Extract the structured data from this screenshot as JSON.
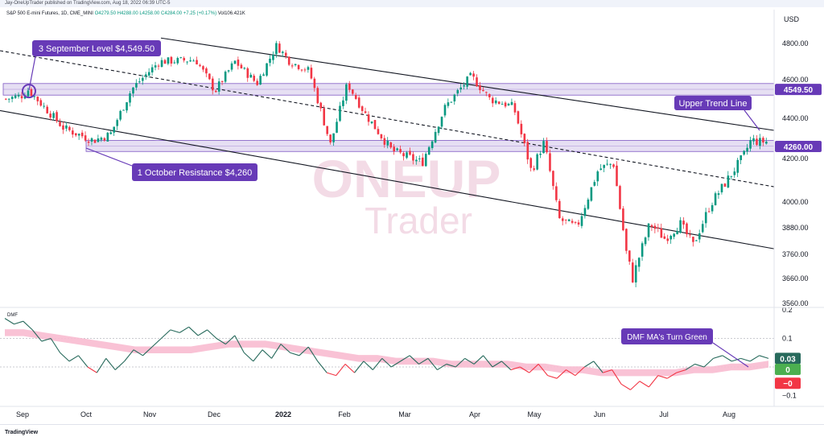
{
  "header": {
    "publisher": "Jay-OneUpTrader published on TradingView.com, Aug 18, 2022 06:39 UTC-5"
  },
  "legend": {
    "symbol": "S&P 500 E-mini Futures, 1D, CME_MINI",
    "ohlc": "O4279.50 H4288.00 L4258.00 C4284.00 +7.25 (+0.17%)",
    "volume": "Vol106.421K"
  },
  "footer": {
    "brand": "TradingView"
  },
  "watermark": {
    "line1": "ONEUP",
    "line2": "Trader"
  },
  "colors": {
    "up": "#089981",
    "down": "#f23645",
    "zone_fill": "#d1c4e9",
    "zone_stroke": "#7e57c2",
    "callout": "#673ab7",
    "dmf_green": "#26695b",
    "dmf_red": "#f23645",
    "ma_pink": "#f8bbd0"
  },
  "chart_data": [
    {
      "type": "candlestick",
      "title": "",
      "currency_label": "USD",
      "x_ticks": [
        "Sep",
        "Oct",
        "Nov",
        "Dec",
        "2022",
        "Feb",
        "Mar",
        "Apr",
        "May",
        "Jun",
        "Jul",
        "Aug"
      ],
      "y_ticks": [
        4800,
        4600,
        4400,
        4200,
        4000,
        3880,
        3760,
        3660,
        3560
      ],
      "y_tick_labels": [
        "4800.00",
        "4600.00",
        "4400.00",
        "4200.00",
        "4000.00",
        "3880.00",
        "3760.00",
        "3660.00",
        "3560.00"
      ],
      "ylim": [
        3530,
        4900
      ],
      "grid": false,
      "price_scale_badges": [
        {
          "label": "4549.50",
          "value": 4549.5
        },
        {
          "label": "4260.00",
          "value": 4260
        }
      ],
      "zones": [
        {
          "name": "3 September Level $4,549.50",
          "low": 4520,
          "high": 4580
        },
        {
          "name": "1 October Resistance $4,260",
          "low": 4235,
          "high": 4290
        }
      ],
      "annotations": [
        {
          "text": "3 September Level $4,549.50"
        },
        {
          "text": "1 October Resistance $4,260"
        },
        {
          "text": "Upper Trend Line"
        }
      ],
      "trend_lines": [
        {
          "name": "upper",
          "from": [
            "Jan 2022 start",
            4830
          ],
          "to": [
            "Aug end",
            4340
          ]
        },
        {
          "name": "middle",
          "style": "dashed",
          "from": [
            "Aug 2021 end",
            4760
          ],
          "to": [
            "Aug end",
            4070
          ]
        },
        {
          "name": "lower",
          "from": [
            "Aug 2021 end",
            4440
          ],
          "to": [
            "Aug end",
            3785
          ]
        }
      ],
      "closes_path": [
        {
          "x": "Sep 1",
          "close": 4520
        },
        {
          "x": "Sep 3",
          "close": 4549.5
        },
        {
          "x": "Sep 20",
          "close": 4350
        },
        {
          "x": "Oct 4",
          "close": 4290
        },
        {
          "x": "Oct 12",
          "close": 4320
        },
        {
          "x": "Oct 22",
          "close": 4550
        },
        {
          "x": "Nov 5",
          "close": 4700
        },
        {
          "x": "Nov 22",
          "close": 4710
        },
        {
          "x": "Dec 1",
          "close": 4540
        },
        {
          "x": "Dec 10",
          "close": 4700
        },
        {
          "x": "Dec 20",
          "close": 4580
        },
        {
          "x": "Dec 29",
          "close": 4790
        },
        {
          "x": "Jan 5",
          "close": 4700
        },
        {
          "x": "Jan 14",
          "close": 4650
        },
        {
          "x": "Jan 24",
          "close": 4270
        },
        {
          "x": "Feb 2",
          "close": 4580
        },
        {
          "x": "Feb 11",
          "close": 4420
        },
        {
          "x": "Feb 24",
          "close": 4240
        },
        {
          "x": "Mar 8",
          "close": 4180
        },
        {
          "x": "Mar 18",
          "close": 4460
        },
        {
          "x": "Mar 29",
          "close": 4620
        },
        {
          "x": "Apr 8",
          "close": 4500
        },
        {
          "x": "Apr 20",
          "close": 4460
        },
        {
          "x": "Apr 29",
          "close": 4140
        },
        {
          "x": "May 5",
          "close": 4280
        },
        {
          "x": "May 12",
          "close": 3920
        },
        {
          "x": "May 20",
          "close": 3880
        },
        {
          "x": "May 30",
          "close": 4150
        },
        {
          "x": "Jun 7",
          "close": 4180
        },
        {
          "x": "Jun 13",
          "close": 3770
        },
        {
          "x": "Jun 16",
          "close": 3660
        },
        {
          "x": "Jun 24",
          "close": 3900
        },
        {
          "x": "Jul 1",
          "close": 3830
        },
        {
          "x": "Jul 8",
          "close": 3900
        },
        {
          "x": "Jul 14",
          "close": 3800
        },
        {
          "x": "Jul 22",
          "close": 3990
        },
        {
          "x": "Aug 1",
          "close": 4120
        },
        {
          "x": "Aug 10",
          "close": 4210
        },
        {
          "x": "Aug 16",
          "close": 4300
        },
        {
          "x": "Aug 18",
          "close": 4284
        }
      ]
    },
    {
      "type": "line",
      "title": "DMF",
      "y_ticks": [
        0.2,
        0.1,
        0,
        -0.1
      ],
      "y_tick_labels": [
        "0.2",
        "0.1",
        "0",
        "−0.1"
      ],
      "ylim": [
        -0.13,
        0.2
      ],
      "value_badges": [
        {
          "label": "0.03",
          "value": 0.03,
          "color": "#26695b"
        },
        {
          "label": "0",
          "value": 0.0,
          "color": "#4caf50"
        },
        {
          "label": "−0",
          "value": -0.04,
          "color": "#f23645"
        }
      ],
      "annotations": [
        {
          "text": "DMF MA's Turn Green"
        }
      ],
      "series": [
        {
          "name": "",
          "style": "line-green-above-red-below",
          "values": [
            0.17,
            0.15,
            0.16,
            0.13,
            0.09,
            0.1,
            0.05,
            0.02,
            0.04,
            0.0,
            -0.02,
            0.03,
            -0.01,
            0.02,
            0.06,
            0.04,
            0.07,
            0.1,
            0.13,
            0.12,
            0.14,
            0.11,
            0.13,
            0.1,
            0.08,
            0.11,
            0.05,
            0.02,
            0.06,
            0.03,
            0.08,
            0.05,
            0.04,
            0.07,
            0.02,
            -0.02,
            -0.03,
            0.01,
            -0.02,
            0.02,
            -0.01,
            0.03,
            0.0,
            0.02,
            0.04,
            0.01,
            0.03,
            -0.01,
            0.01,
            0.0,
            0.03,
            0.01,
            0.04,
            0.0,
            0.02,
            -0.01,
            0.0,
            -0.02,
            0.01,
            -0.03,
            -0.04,
            -0.01,
            -0.03,
            0.0,
            0.02,
            -0.02,
            -0.01,
            -0.06,
            -0.08,
            -0.05,
            -0.07,
            -0.03,
            -0.04,
            -0.02,
            -0.01,
            0.01,
            0.0,
            0.03,
            0.04,
            0.02,
            0.03,
            0.02,
            0.04,
            0.03
          ]
        },
        {
          "name": "",
          "style": "ma-band",
          "values": [
            0.12,
            0.12,
            0.11,
            0.1,
            0.09,
            0.08,
            0.07,
            0.06,
            0.06,
            0.06,
            0.06,
            0.07,
            0.08,
            0.08,
            0.08,
            0.07,
            0.06,
            0.05,
            0.04,
            0.03,
            0.03,
            0.02,
            0.02,
            0.02,
            0.01,
            0.01,
            0.01,
            0.01,
            0.0,
            0.0,
            -0.01,
            -0.01,
            -0.02,
            -0.02,
            -0.02,
            -0.02,
            -0.02,
            -0.01,
            -0.01,
            0.0,
            0.0,
            0.01
          ]
        }
      ]
    }
  ]
}
